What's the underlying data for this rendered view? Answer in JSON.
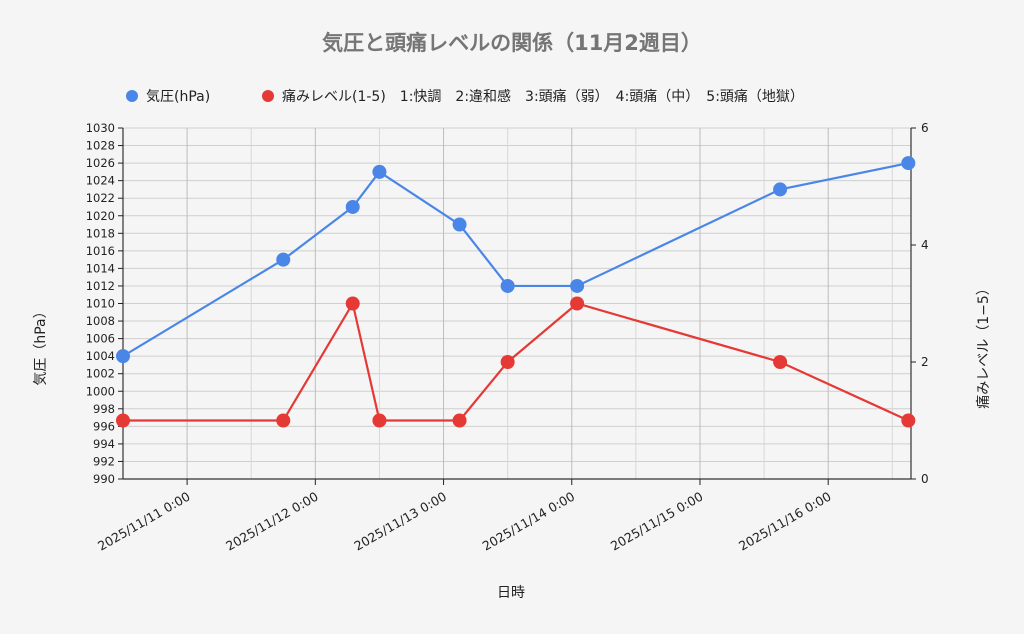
{
  "chart_data": {
    "type": "line",
    "title": "気圧と頭痛レベルの関係（11月2週目）",
    "xlabel": "日時",
    "ylabel_left": "気圧（hPa）",
    "ylabel_right": "痛みレベル（1−5）",
    "legend_position": "top",
    "grid": true,
    "x_ticks": [
      "2025/11/11 0:00",
      "2025/11/12 0:00",
      "2025/11/13 0:00",
      "2025/11/14 0:00",
      "2025/11/15 0:00",
      "2025/11/16 0:00"
    ],
    "x_range": [
      "2025/11/10 12:00",
      "2025/11/16 15:30"
    ],
    "y_left_range": [
      990,
      1030
    ],
    "y_left_ticks": [
      990,
      992,
      994,
      996,
      998,
      1000,
      1002,
      1004,
      1006,
      1008,
      1010,
      1012,
      1014,
      1016,
      1018,
      1020,
      1022,
      1024,
      1026,
      1028,
      1030
    ],
    "y_right_range": [
      0,
      6
    ],
    "y_right_ticks": [
      0,
      2,
      4,
      6
    ],
    "series": [
      {
        "name": "気圧(hPa)",
        "color": "#4a86e8",
        "axis": "left",
        "points": [
          {
            "x": "2025/11/10 12:00",
            "y": 1004
          },
          {
            "x": "2025/11/11 18:00",
            "y": 1015
          },
          {
            "x": "2025/11/12 7:00",
            "y": 1021
          },
          {
            "x": "2025/11/12 12:00",
            "y": 1025
          },
          {
            "x": "2025/11/13 3:00",
            "y": 1019
          },
          {
            "x": "2025/11/13 12:00",
            "y": 1012
          },
          {
            "x": "2025/11/14 1:00",
            "y": 1012
          },
          {
            "x": "2025/11/15 15:00",
            "y": 1023
          },
          {
            "x": "2025/11/16 15:00",
            "y": 1026
          }
        ]
      },
      {
        "name": "痛みレベル(1-5)　1:快調　2:違和感　3:頭痛（弱）　4:頭痛（中）　5:頭痛（地獄）",
        "color": "#e53935",
        "axis": "right",
        "points": [
          {
            "x": "2025/11/10 12:00",
            "y": 1
          },
          {
            "x": "2025/11/11 18:00",
            "y": 1
          },
          {
            "x": "2025/11/12 7:00",
            "y": 3
          },
          {
            "x": "2025/11/12 12:00",
            "y": 1
          },
          {
            "x": "2025/11/13 3:00",
            "y": 1
          },
          {
            "x": "2025/11/13 12:00",
            "y": 2
          },
          {
            "x": "2025/11/14 1:00",
            "y": 3
          },
          {
            "x": "2025/11/15 15:00",
            "y": 2
          },
          {
            "x": "2025/11/16 15:00",
            "y": 1
          }
        ]
      }
    ]
  }
}
